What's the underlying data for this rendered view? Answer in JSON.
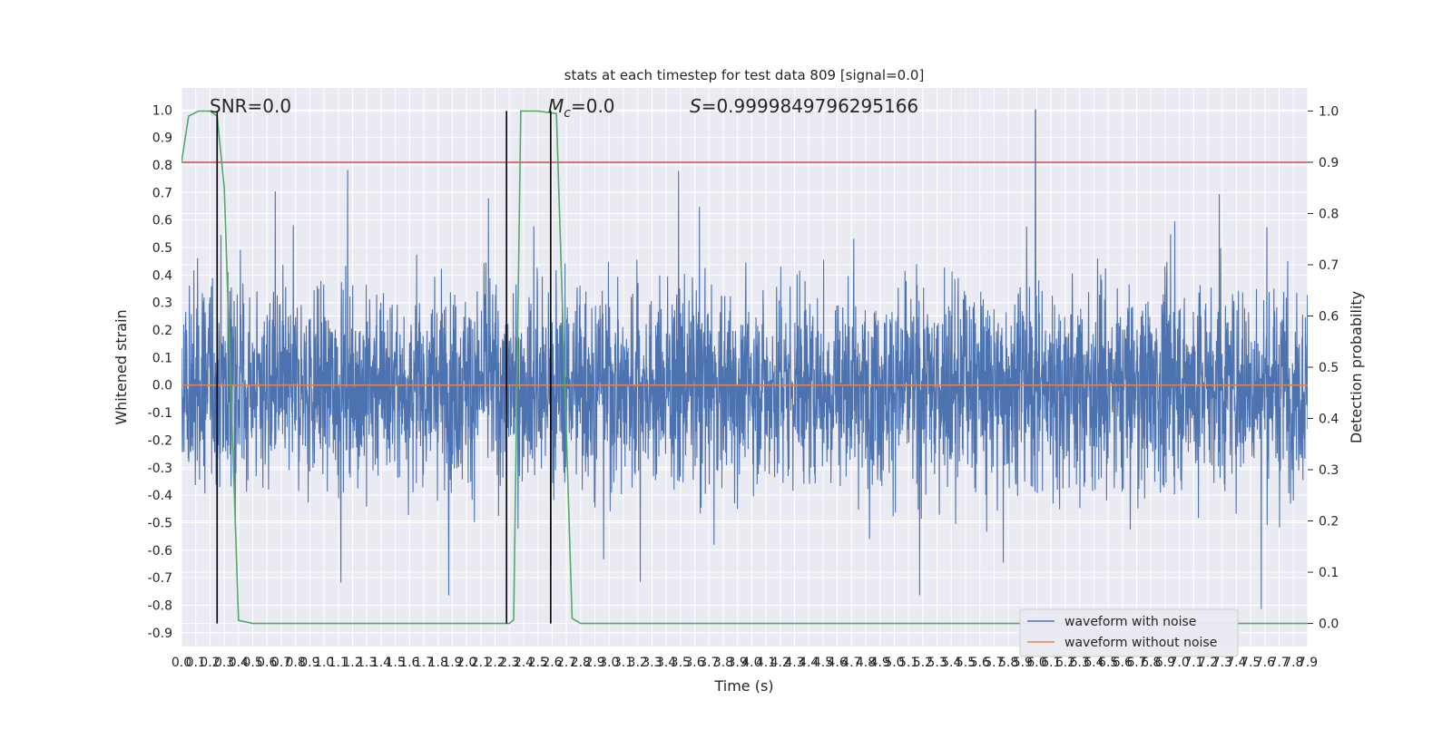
{
  "chart_data": {
    "type": "line",
    "title": "stats at each timestep for test data 809 [signal=0.0]",
    "xlabel": "Time (s)",
    "ylabel": "Whitened strain",
    "y2label": "Detection probability",
    "xlim": [
      0.0,
      7.9
    ],
    "ylim": [
      -0.95,
      1.08
    ],
    "y2lim": [
      -0.045,
      1.045
    ],
    "x_ticks": [
      "0.0",
      "0.1",
      "0.2",
      "0.3",
      "0.4",
      "0.5",
      "0.6",
      "0.7",
      "0.8",
      "0.9",
      "1.0",
      "1.1",
      "1.2",
      "1.3",
      "1.4",
      "1.5",
      "1.6",
      "1.7",
      "1.8",
      "1.9",
      "2.0",
      "2.1",
      "2.2",
      "2.3",
      "2.4",
      "2.5",
      "2.6",
      "2.7",
      "2.8",
      "2.9",
      "3.0",
      "3.1",
      "3.2",
      "3.3",
      "3.4",
      "3.5",
      "3.6",
      "3.7",
      "3.8",
      "3.9",
      "4.0",
      "4.1",
      "4.2",
      "4.3",
      "4.4",
      "4.5",
      "4.6",
      "4.7",
      "4.8",
      "4.9",
      "5.0",
      "5.1",
      "5.2",
      "5.3",
      "5.4",
      "5.5",
      "5.6",
      "5.7",
      "5.8",
      "5.9",
      "6.0",
      "6.1",
      "6.2",
      "6.3",
      "6.4",
      "6.5",
      "6.6",
      "6.7",
      "6.8",
      "6.9",
      "7.0",
      "7.1",
      "7.2",
      "7.3",
      "7.4",
      "7.5",
      "7.6",
      "7.7",
      "7.8",
      "7.9"
    ],
    "y_ticks": [
      "-0.9",
      "-0.8",
      "-0.7",
      "-0.6",
      "-0.5",
      "-0.4",
      "-0.3",
      "-0.2",
      "-0.1",
      "0.0",
      "0.1",
      "0.2",
      "0.3",
      "0.4",
      "0.5",
      "0.6",
      "0.7",
      "0.8",
      "0.9",
      "1.0"
    ],
    "y2_ticks": [
      "0.0",
      "0.1",
      "0.2",
      "0.3",
      "0.4",
      "0.5",
      "0.6",
      "0.7",
      "0.8",
      "0.9",
      "1.0"
    ],
    "annotations": [
      {
        "label": "SNR=0.0"
      },
      {
        "label": "M_c=0.0",
        "base": "M",
        "sub": "c",
        "rest": "=0.0"
      },
      {
        "label": "S=0.9999849796295166",
        "base": "S",
        "rest": "=0.9999849796295166"
      }
    ],
    "series": [
      {
        "name": "waveform with noise",
        "color": "#4c72b0",
        "axis": "left",
        "kind": "noise",
        "amplitude_range": [
          -0.86,
          1.0
        ],
        "peak": {
          "x": 5.99,
          "y": 1.0
        }
      },
      {
        "name": "waveform without noise",
        "color": "#dd8452",
        "axis": "left",
        "y_constant": 0.0
      },
      {
        "name": "",
        "color": "#55a868",
        "axis": "right",
        "x": [
          0.0,
          0.05,
          0.12,
          0.2,
          0.25,
          0.3,
          0.4,
          0.5,
          2.0,
          2.3,
          2.33,
          2.38,
          2.5,
          2.63,
          2.74,
          2.8,
          7.9
        ],
        "y": [
          0.9,
          0.99,
          1.0,
          1.0,
          0.99,
          0.85,
          0.006,
          0.0,
          0.0,
          0.0,
          0.007,
          1.0,
          1.0,
          0.995,
          0.01,
          0.0,
          0.0
        ]
      }
    ],
    "threshold_right_axis": 0.9,
    "vertical_lines_x": [
      0.25,
      2.28,
      2.59
    ],
    "vertical_lines_range_right_axis": [
      0.0,
      1.0
    ],
    "grid": true,
    "legend_position": "lower right"
  }
}
